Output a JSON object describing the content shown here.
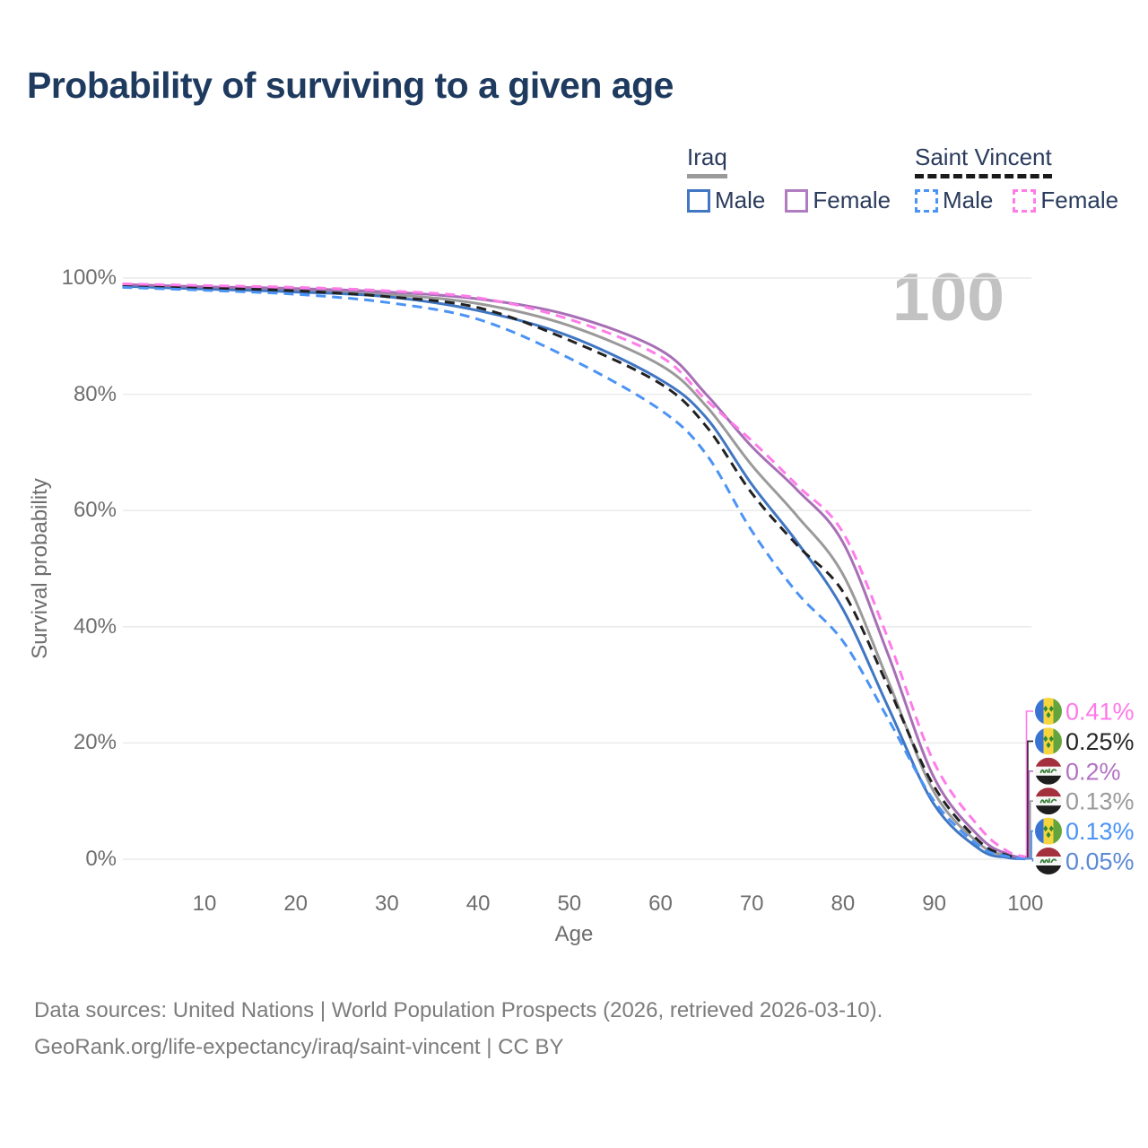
{
  "title": "Probability of surviving to a given age",
  "watermark": {
    "text": "100"
  },
  "legend": {
    "groups": [
      {
        "name": "Iraq",
        "underline_style": "solid",
        "underline_color": "#9a9a9a",
        "items": [
          {
            "label": "Male",
            "color": "#4076c2",
            "dashed": false
          },
          {
            "label": "Female",
            "color": "#b07cc0",
            "dashed": false
          }
        ]
      },
      {
        "name": "Saint Vincent",
        "underline_style": "dashed",
        "underline_color": "#1a1a1a",
        "items": [
          {
            "label": "Male",
            "color": "#4b93f5",
            "dashed": true
          },
          {
            "label": "Female",
            "color": "#ff7ce8",
            "dashed": true
          }
        ]
      }
    ]
  },
  "axes": {
    "x": {
      "label": "Age",
      "ticks": [
        10,
        20,
        30,
        40,
        50,
        60,
        70,
        80,
        90,
        100
      ],
      "range": [
        0,
        100
      ]
    },
    "y": {
      "label": "Survival probability",
      "ticks": [
        {
          "label": "100%",
          "value": 100
        },
        {
          "label": "80%",
          "value": 80
        },
        {
          "label": "60%",
          "value": 60
        },
        {
          "label": "40%",
          "value": 40
        },
        {
          "label": "20%",
          "value": 20
        },
        {
          "label": "0%",
          "value": 0
        }
      ],
      "range": [
        0,
        100
      ]
    }
  },
  "chart_data": {
    "type": "line",
    "title": "Probability of surviving to a given age",
    "xlabel": "Age",
    "ylabel": "Survival probability",
    "xlim": [
      0,
      100
    ],
    "ylim": [
      0,
      100
    ],
    "grid": "horizontal",
    "x": [
      1,
      10,
      20,
      30,
      40,
      50,
      60,
      65,
      70,
      75,
      80,
      85,
      90,
      95,
      98,
      100
    ],
    "series": [
      {
        "id": "iraq_total",
        "name": "Iraq (both sexes)",
        "color": "#9a9a9a",
        "dashed": false,
        "flag": "iraq",
        "end_label": "0.13%",
        "values": [
          98.7,
          98.3,
          97.9,
          97.2,
          95.6,
          91.8,
          85.0,
          78.0,
          67.8,
          59.0,
          49.0,
          30.5,
          11.5,
          2.6,
          0.6,
          0.13
        ]
      },
      {
        "id": "iraq_male",
        "name": "Iraq Male",
        "color": "#4076c2",
        "dashed": false,
        "flag": "iraq",
        "end_label": "0.05%",
        "values": [
          98.6,
          98.1,
          97.6,
          96.8,
          94.4,
          90.0,
          82.5,
          76.0,
          64.5,
          54.5,
          43.0,
          26.0,
          9.4,
          1.7,
          0.3,
          0.05
        ]
      },
      {
        "id": "iraq_female",
        "name": "Iraq Female",
        "color": "#a76fb5",
        "dashed": false,
        "flag": "iraq",
        "end_label": "0.2%",
        "values": [
          98.9,
          98.5,
          98.2,
          97.6,
          96.4,
          93.6,
          87.6,
          80.0,
          71.0,
          63.5,
          54.5,
          35.0,
          14.0,
          3.8,
          0.9,
          0.2
        ]
      },
      {
        "id": "sv_total",
        "name": "Saint Vincent (both sexes)",
        "color": "#212121",
        "dashed": true,
        "flag": "saint-vincent",
        "end_label": "0.25%",
        "values": [
          98.7,
          98.3,
          97.8,
          96.8,
          94.9,
          89.3,
          81.8,
          74.5,
          63.0,
          54.0,
          46.0,
          29.5,
          12.5,
          3.0,
          0.7,
          0.25
        ]
      },
      {
        "id": "sv_male",
        "name": "Saint Vincent Male",
        "color": "#4b93f5",
        "dashed": true,
        "flag": "saint-vincent",
        "end_label": "0.13%",
        "values": [
          98.4,
          97.9,
          97.2,
          95.8,
          92.9,
          86.2,
          77.3,
          69.7,
          56.5,
          45.8,
          37.5,
          24.0,
          10.0,
          2.2,
          0.5,
          0.13
        ]
      },
      {
        "id": "sv_female",
        "name": "Saint Vincent Female",
        "color": "#ff7ce8",
        "dashed": true,
        "flag": "saint-vincent",
        "end_label": "0.41%",
        "values": [
          99.0,
          98.7,
          98.4,
          97.8,
          96.6,
          92.9,
          86.5,
          79.0,
          72.0,
          64.3,
          56.2,
          37.7,
          16.6,
          5.4,
          1.4,
          0.41
        ]
      }
    ],
    "end_labels": [
      {
        "series_id": "sv_female",
        "flag": "saint-vincent",
        "text": "0.41%",
        "color": "#ff78e8"
      },
      {
        "series_id": "sv_total",
        "flag": "saint-vincent",
        "text": "0.25%",
        "color": "#262626"
      },
      {
        "series_id": "iraq_female",
        "flag": "iraq",
        "text": "0.2%",
        "color": "#b273c2"
      },
      {
        "series_id": "iraq_total",
        "flag": "iraq",
        "text": "0.13%",
        "color": "#9a9a9a"
      },
      {
        "series_id": "sv_male",
        "flag": "saint-vincent",
        "text": "0.13%",
        "color": "#4b93f5"
      },
      {
        "series_id": "iraq_male",
        "flag": "iraq",
        "text": "0.05%",
        "color": "#5b89d6"
      }
    ]
  },
  "footer": {
    "line1": "Data sources: United Nations | World Population Prospects (2026, retrieved 2026-03-10).",
    "line2": "GeoRank.org/life-expectancy/iraq/saint-vincent | CC BY"
  },
  "palette": {
    "gridline": "#eaeaea",
    "axis_text": "#6e6e6e",
    "title_text": "#1e3a5f",
    "footer_text": "#7c7c7c",
    "watermark_text": "#c2c2c2"
  }
}
